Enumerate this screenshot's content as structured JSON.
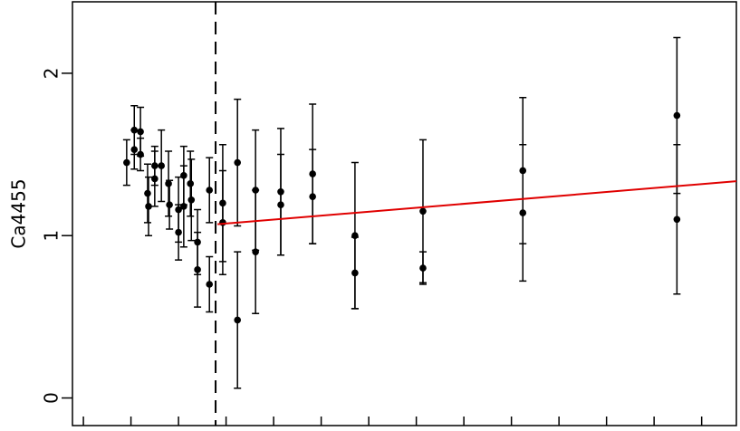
{
  "chart_data": {
    "type": "scatter",
    "y_label": "Ca4455",
    "xlim": [
      -0.23,
      13.73
    ],
    "ylim": [
      -0.17,
      2.44
    ],
    "xticks": [
      0,
      1,
      2,
      3,
      4,
      5,
      6,
      7,
      8,
      9,
      10,
      11,
      12,
      13
    ],
    "yticks": [
      0,
      1,
      2
    ],
    "divider_x": 2.78,
    "series": [
      {
        "color": "#000000",
        "x": [
          0.91,
          1.07,
          1.07,
          1.2,
          1.2,
          1.35,
          1.37,
          1.5,
          1.5,
          1.64,
          1.79,
          1.81,
          2.0,
          2.0,
          2.11,
          2.11,
          2.25,
          2.27,
          2.4,
          2.4,
          2.65,
          2.65,
          2.93,
          2.93,
          3.24,
          3.24,
          3.62,
          3.62,
          4.15,
          4.15,
          4.82,
          4.82,
          5.71,
          5.71,
          7.14,
          7.14,
          9.24,
          9.24,
          12.48,
          12.48
        ],
        "values": [
          1.45,
          1.65,
          1.53,
          1.64,
          1.5,
          1.26,
          1.18,
          1.43,
          1.35,
          1.43,
          1.32,
          1.19,
          1.16,
          1.02,
          1.37,
          1.18,
          1.32,
          1.22,
          0.96,
          0.79,
          1.28,
          0.7,
          1.2,
          1.08,
          1.45,
          0.48,
          1.28,
          0.9,
          1.27,
          1.19,
          1.38,
          1.24,
          1.0,
          0.77,
          1.15,
          0.8,
          1.4,
          1.14,
          1.74,
          1.1
        ],
        "errors": [
          0.14,
          0.15,
          0.12,
          0.15,
          0.1,
          0.18,
          0.18,
          0.12,
          0.17,
          0.22,
          0.2,
          0.15,
          0.2,
          0.17,
          0.18,
          0.25,
          0.2,
          0.25,
          0.2,
          0.23,
          0.2,
          0.17,
          0.36,
          0.32,
          0.39,
          0.42,
          0.37,
          0.38,
          0.39,
          0.31,
          0.43,
          0.29,
          0.45,
          0.22,
          0.44,
          0.1,
          0.45,
          0.42,
          0.48,
          0.46
        ]
      },
      {
        "color": "#e00000",
        "x": [
          2.82,
          13.73
        ],
        "values": [
          1.07,
          1.335
        ],
        "line": true
      }
    ]
  }
}
